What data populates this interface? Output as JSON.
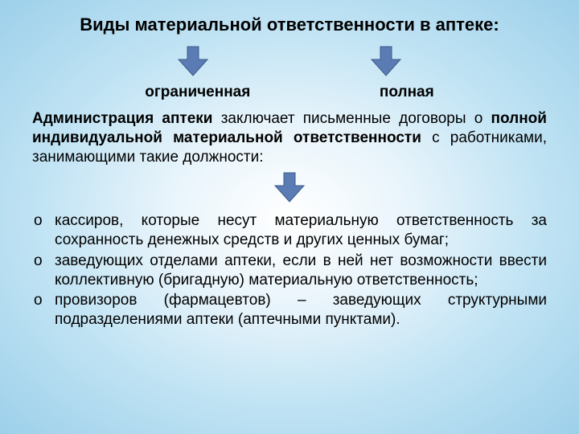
{
  "title": "Виды материальной ответственности в аптеке:",
  "labels": {
    "left": "ограниченная",
    "right": "полная"
  },
  "paragraph_html": "<b>Администрация аптеки</b> заключает письменные договоры о <b>полной индивидуальной материальной ответственности</b> с работниками, занимающими такие должности:",
  "list": [
    "кассиров, которые несут материальную ответственность за сохранность денежных средств и других ценных бумаг;",
    "заведующих отделами аптеки, если в ней нет возможности ввести коллективную (бригадную) материальную ответственность;",
    "провизоров (фармацевтов) – заведующих структурными подразделениями аптеки (аптечными пунктами)."
  ],
  "arrow": {
    "fill": "#5b7bb4",
    "stroke": "#3a5a8a",
    "width": 44,
    "height": 40
  }
}
